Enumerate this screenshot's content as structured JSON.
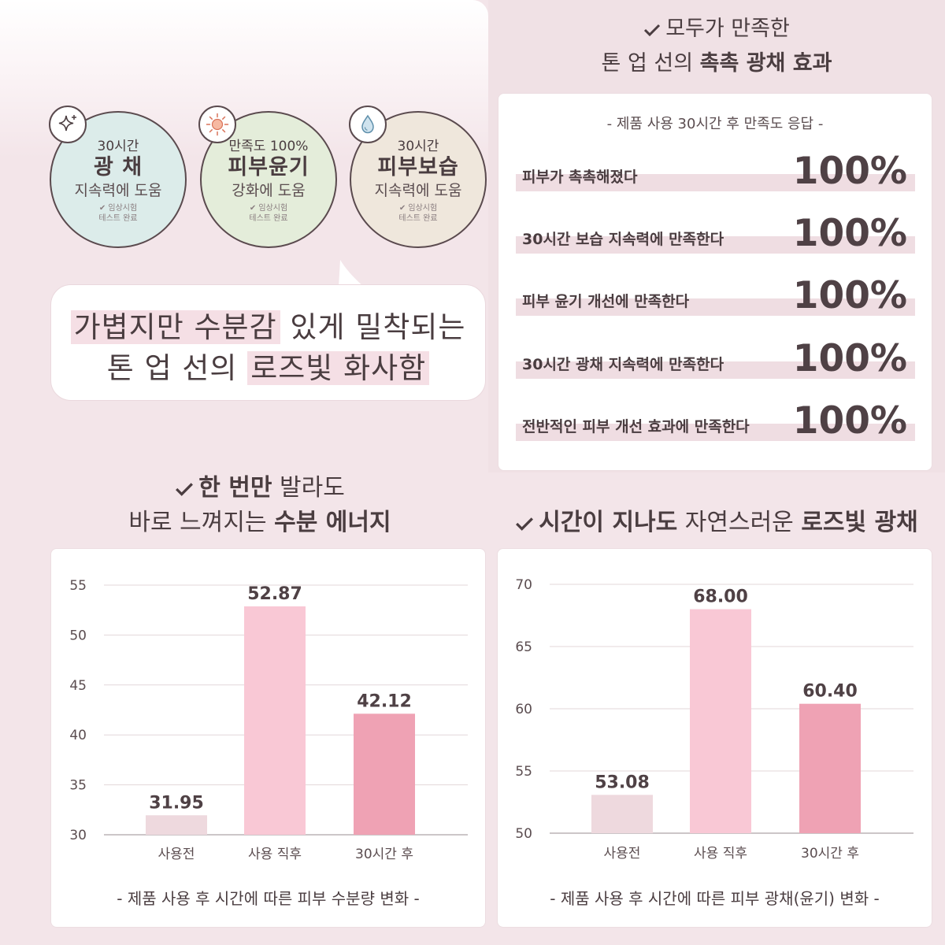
{
  "circles": [
    {
      "top": "30시간",
      "main": "광 채",
      "sub": "지속력에 도움",
      "note1": "✔ 임상시험",
      "note2": "테스트 완료",
      "icon": "sparkle-icon"
    },
    {
      "top": "만족도 100%",
      "main": "피부윤기",
      "sub": "강화에 도움",
      "note1": "✔ 임상시험",
      "note2": "테스트 완료",
      "icon": "sun-icon"
    },
    {
      "top": "30시간",
      "main": "피부보습",
      "sub": "지속력에 도움",
      "note1": "✔ 임상시험",
      "note2": "테스트 완료",
      "icon": "water-drop-icon"
    }
  ],
  "bubble": {
    "line1_hl": "가볍지만 수분감",
    "line1_rest": " 있게 밀착되는",
    "line2_plain": "톤 업 선의 ",
    "line2_hl": "로즈빛 화사함"
  },
  "survey": {
    "title1": "모두가 만족한",
    "title2_plain": "톤 업 선의 ",
    "title2_bold": "촉촉 광채 효과",
    "subtitle": "- 제품 사용 30시간 후 만족도 응답 -",
    "rows": [
      {
        "label": "피부가 촉촉해졌다",
        "value": "100%"
      },
      {
        "label": "30시간 보습 지속력에 만족한다",
        "value": "100%"
      },
      {
        "label": "피부 윤기 개선에 만족한다",
        "value": "100%"
      },
      {
        "label": "30시간 광채 지속력에 만족한다",
        "value": "100%"
      },
      {
        "label": "전반적인 피부 개선 효과에 만족한다",
        "value": "100%"
      }
    ]
  },
  "chart1_title": {
    "bold1": "한 번만",
    "plain1": " 발라도",
    "plain2": "바로 느껴지는 ",
    "bold2": "수분 에너지"
  },
  "chart2_title": {
    "bold1": "시간이 지나도",
    "plain1": " 자연스러운 ",
    "bold2": "로즈빛 광채"
  },
  "colors": {
    "before": "#eed9de",
    "right_after": "#f9c8d5",
    "after_30h": "#efa2b4",
    "grid": "#e3d7da",
    "axis": "#9a8d90"
  },
  "chart_data": [
    {
      "type": "bar",
      "categories": [
        "사용전",
        "사용 직후",
        "30시간 후"
      ],
      "values": [
        31.95,
        52.87,
        42.12
      ],
      "value_labels": [
        "31.95",
        "52.87",
        "42.12"
      ],
      "yticks": [
        30,
        35,
        40,
        45,
        50,
        55
      ],
      "ylim": [
        30,
        55
      ],
      "caption": "- 제품 사용 후 시간에 따른 피부 수분량 변화 -",
      "grid": true
    },
    {
      "type": "bar",
      "categories": [
        "사용전",
        "사용 직후",
        "30시간 후"
      ],
      "values": [
        53.08,
        68.0,
        60.4
      ],
      "value_labels": [
        "53.08",
        "68.00",
        "60.40"
      ],
      "yticks": [
        50,
        55,
        60,
        65,
        70
      ],
      "ylim": [
        50,
        70
      ],
      "caption": "- 제품 사용 후 시간에 따른 피부 광채(윤기) 변화 -",
      "grid": true
    }
  ]
}
